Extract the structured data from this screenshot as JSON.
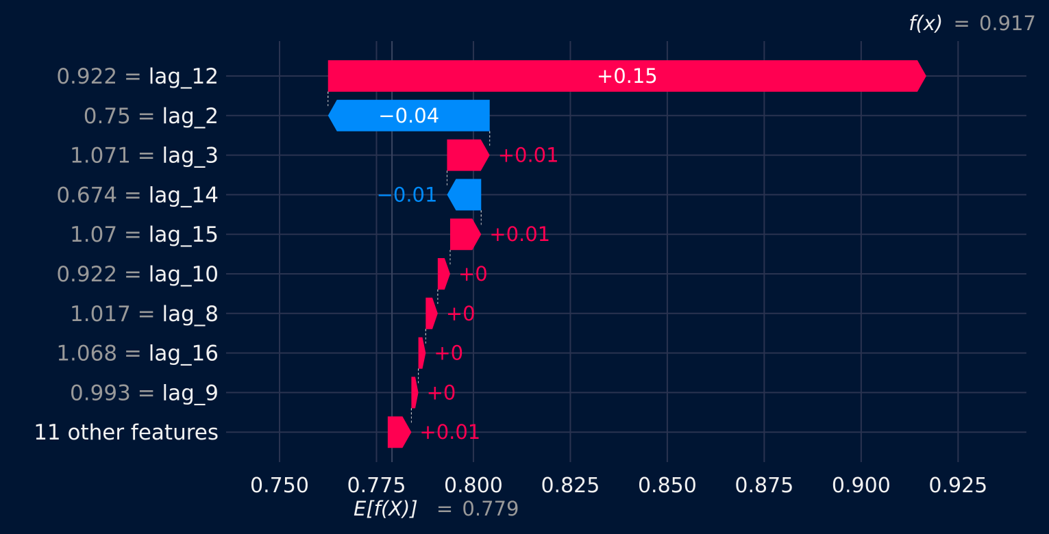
{
  "chart_data": {
    "type": "waterfall",
    "fx": {
      "label": "f(x)",
      "eq": "=",
      "value": "0.917",
      "numeric": 0.917
    },
    "efx": {
      "label": "E[f(X)]",
      "eq": "=",
      "value": "0.779",
      "numeric": 0.779
    },
    "xticks": [
      0.75,
      0.775,
      0.8,
      0.825,
      0.85,
      0.875,
      0.9,
      0.925
    ],
    "xtick_labels": [
      "0.750",
      "0.775",
      "0.800",
      "0.825",
      "0.850",
      "0.875",
      "0.900",
      "0.925"
    ],
    "xlim": [
      0.737,
      0.944
    ],
    "features": [
      {
        "value_text": "0.922",
        "name": "lag_12",
        "start": 0.7625,
        "end": 0.9168,
        "label": "+0.15"
      },
      {
        "value_text": "0.75",
        "name": "lag_2",
        "start": 0.8042,
        "end": 0.7625,
        "label": "−0.04"
      },
      {
        "value_text": "1.071",
        "name": "lag_3",
        "start": 0.7932,
        "end": 0.8042,
        "label": "+0.01"
      },
      {
        "value_text": "0.674",
        "name": "lag_14",
        "start": 0.802,
        "end": 0.7932,
        "label": "−0.01"
      },
      {
        "value_text": "1.07",
        "name": "lag_15",
        "start": 0.794,
        "end": 0.802,
        "label": "+0.01"
      },
      {
        "value_text": "0.922",
        "name": "lag_10",
        "start": 0.7908,
        "end": 0.794,
        "label": "+0"
      },
      {
        "value_text": "1.017",
        "name": "lag_8",
        "start": 0.7877,
        "end": 0.7908,
        "label": "+0"
      },
      {
        "value_text": "1.068",
        "name": "lag_16",
        "start": 0.7858,
        "end": 0.7877,
        "label": "+0"
      },
      {
        "value_text": "0.993",
        "name": "lag_9",
        "start": 0.784,
        "end": 0.7858,
        "label": "+0"
      },
      {
        "value_text": "",
        "name": "11 other features",
        "start": 0.7779,
        "end": 0.784,
        "label": "+0.01"
      }
    ],
    "colors": {
      "background": "#001533",
      "positive": "#ff0051",
      "negative": "#008bfb",
      "grid": "#2a3350",
      "text": "#f2f2f2",
      "muted": "#999999"
    }
  }
}
